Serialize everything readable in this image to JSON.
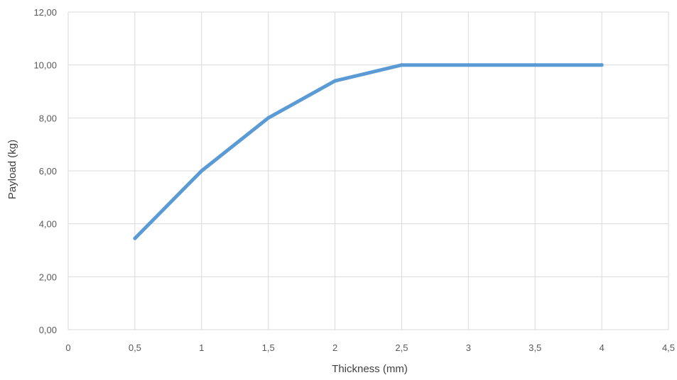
{
  "chart_data": {
    "type": "line",
    "title": "",
    "xlabel": "Thickness (mm)",
    "ylabel": "Payload (kg)",
    "xlim": [
      0,
      4.5
    ],
    "ylim": [
      0,
      12
    ],
    "x_ticks": [
      {
        "value": 0,
        "label": "0"
      },
      {
        "value": 0.5,
        "label": "0,5"
      },
      {
        "value": 1,
        "label": "1"
      },
      {
        "value": 1.5,
        "label": "1,5"
      },
      {
        "value": 2,
        "label": "2"
      },
      {
        "value": 2.5,
        "label": "2,5"
      },
      {
        "value": 3,
        "label": "3"
      },
      {
        "value": 3.5,
        "label": "3,5"
      },
      {
        "value": 4,
        "label": "4"
      },
      {
        "value": 4.5,
        "label": "4,5"
      }
    ],
    "y_ticks": [
      {
        "value": 0,
        "label": "0,00"
      },
      {
        "value": 2,
        "label": "2,00"
      },
      {
        "value": 4,
        "label": "4,00"
      },
      {
        "value": 6,
        "label": "6,00"
      },
      {
        "value": 8,
        "label": "8,00"
      },
      {
        "value": 10,
        "label": "10,00"
      },
      {
        "value": 12,
        "label": "12,00"
      }
    ],
    "grid": true,
    "legend": false,
    "series": [
      {
        "color": "#5b9bd5",
        "x": [
          0.5,
          1,
          1.5,
          2,
          2.5,
          3,
          3.5,
          4
        ],
        "y": [
          3.45,
          6.0,
          8.0,
          9.4,
          10.0,
          10.0,
          10.0,
          10.0
        ]
      }
    ]
  }
}
